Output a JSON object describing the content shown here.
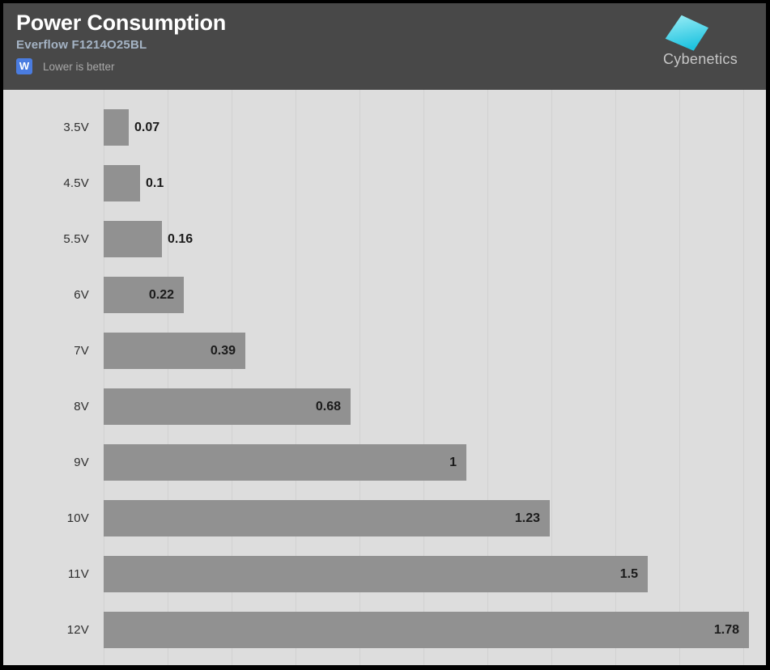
{
  "header": {
    "title": "Power Consumption",
    "subtitle": "Everflow F1214O25BL",
    "unit_badge": "W",
    "note": "Lower is better",
    "logo_text": "Cybenetics"
  },
  "colors": {
    "header_bg": "#484848",
    "title": "#ffffff",
    "subtitle": "#a4b3c4",
    "badge_blue": "#4a7ce0",
    "note": "#a8a8a8",
    "logo_text": "#c6c6c6",
    "logo_cyan_light": "#9ceef6",
    "logo_cyan_dark": "#1fc3e0",
    "chart_bg": "#dddddd",
    "gridline": "#d1d1d1",
    "bar": "#919191",
    "value": "#1b1b1b",
    "category": "#2e2e2e"
  },
  "chart_data": {
    "type": "bar",
    "orientation": "horizontal",
    "title": "Power Consumption",
    "subtitle": "Everflow F1214O25BL",
    "unit": "W",
    "lower_is_better": true,
    "categories": [
      "3.5V",
      "4.5V",
      "5.5V",
      "6V",
      "7V",
      "8V",
      "9V",
      "10V",
      "11V",
      "12V"
    ],
    "values": [
      0.07,
      0.1,
      0.16,
      0.22,
      0.39,
      0.68,
      1,
      1.23,
      1.5,
      1.78
    ],
    "value_labels": [
      "0.07",
      "0.1",
      "0.16",
      "0.22",
      "0.39",
      "0.68",
      "1",
      "1.23",
      "1.5",
      "1.78"
    ],
    "xlim": [
      0,
      1.83
    ],
    "grid": true,
    "gridline_count": 11,
    "legend": false
  }
}
